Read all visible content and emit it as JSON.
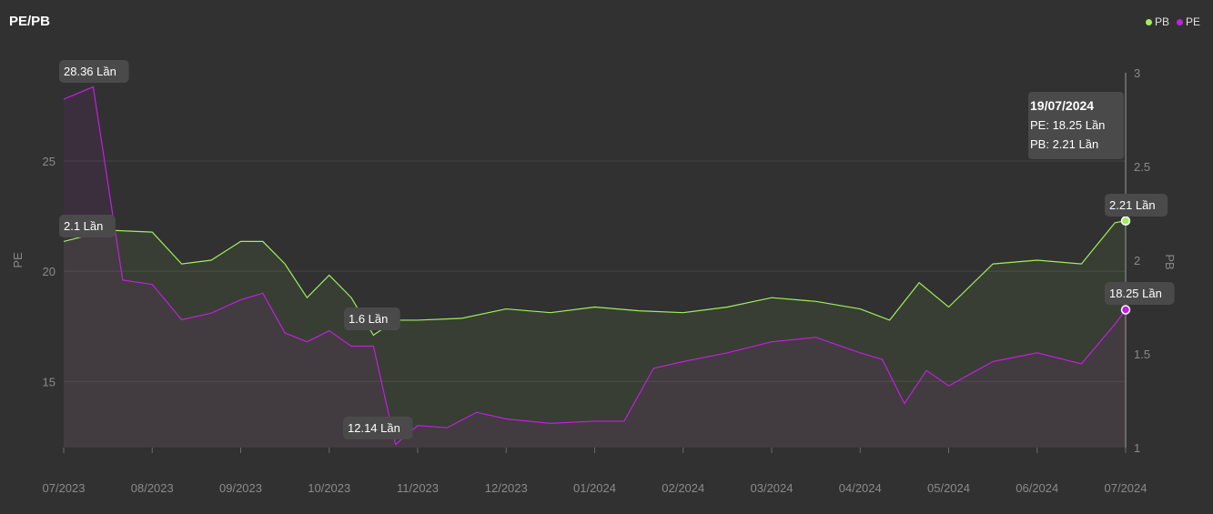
{
  "title": "PE/PB",
  "legend": [
    {
      "name": "PB",
      "color": "#9ef05a"
    },
    {
      "name": "PE",
      "color": "#c21fe0"
    }
  ],
  "chart_data": {
    "type": "line",
    "title": "PE/PB",
    "x_ticks": [
      "07/2023",
      "08/2023",
      "09/2023",
      "10/2023",
      "11/2023",
      "12/2023",
      "01/2024",
      "02/2024",
      "03/2024",
      "04/2024",
      "05/2024",
      "06/2024",
      "07/2024"
    ],
    "y_left": {
      "label": "PE",
      "ticks": [
        "15",
        "20",
        "25"
      ],
      "range": [
        12,
        29
      ]
    },
    "y_right": {
      "label": "PB",
      "ticks": [
        "1",
        "1.5",
        "2",
        "2.5",
        "3"
      ],
      "range": [
        1,
        3
      ]
    },
    "grid": true,
    "legend_position": "top-right",
    "series": [
      {
        "name": "PE",
        "axis": "left",
        "color": "#c21fe0",
        "points": [
          [
            "07/2023",
            27.8
          ],
          [
            "07/2023",
            28.36
          ],
          [
            "07/2023",
            19.6
          ],
          [
            "08/2023",
            19.4
          ],
          [
            "08/2023",
            17.8
          ],
          [
            "08/2023",
            18.1
          ],
          [
            "09/2023",
            18.7
          ],
          [
            "09/2023",
            19.0
          ],
          [
            "09/2023",
            17.2
          ],
          [
            "09/2023",
            16.8
          ],
          [
            "10/2023",
            17.3
          ],
          [
            "10/2023",
            16.6
          ],
          [
            "10/2023",
            16.6
          ],
          [
            "10/2023",
            12.14
          ],
          [
            "11/2023",
            13.0
          ],
          [
            "11/2023",
            12.9
          ],
          [
            "11/2023",
            13.6
          ],
          [
            "12/2023",
            13.3
          ],
          [
            "12/2023",
            13.1
          ],
          [
            "01/2024",
            13.2
          ],
          [
            "01/2024",
            13.2
          ],
          [
            "01/2024",
            15.6
          ],
          [
            "02/2024",
            15.9
          ],
          [
            "02/2024",
            16.3
          ],
          [
            "03/2024",
            16.8
          ],
          [
            "03/2024",
            17.0
          ],
          [
            "04/2024",
            16.3
          ],
          [
            "04/2024",
            16.0
          ],
          [
            "04/2024",
            14.0
          ],
          [
            "04/2024",
            15.5
          ],
          [
            "05/2024",
            14.8
          ],
          [
            "05/2024",
            15.9
          ],
          [
            "06/2024",
            16.3
          ],
          [
            "06/2024",
            15.8
          ],
          [
            "07/2024",
            17.6
          ],
          [
            "07/2024",
            18.25
          ]
        ],
        "labels": [
          {
            "text": "28.36 Lần",
            "x": "07/2023",
            "y": 28.36
          },
          {
            "text": "12.14 Lần",
            "x": "10/2023",
            "y": 12.14
          },
          {
            "text": "18.25 Lần",
            "x": "07/2024",
            "y": 18.25
          }
        ]
      },
      {
        "name": "PB",
        "axis": "right",
        "color": "#9ef05a",
        "points": [
          [
            "07/2023",
            2.1
          ],
          [
            "07/2023",
            2.16
          ],
          [
            "08/2023",
            2.15
          ],
          [
            "08/2023",
            1.98
          ],
          [
            "08/2023",
            2.0
          ],
          [
            "09/2023",
            2.1
          ],
          [
            "09/2023",
            2.1
          ],
          [
            "09/2023",
            1.98
          ],
          [
            "09/2023",
            1.8
          ],
          [
            "10/2023",
            1.92
          ],
          [
            "10/2023",
            1.8
          ],
          [
            "10/2023",
            1.6
          ],
          [
            "10/2023",
            1.68
          ],
          [
            "11/2023",
            1.68
          ],
          [
            "11/2023",
            1.69
          ],
          [
            "12/2023",
            1.74
          ],
          [
            "12/2023",
            1.72
          ],
          [
            "01/2024",
            1.75
          ],
          [
            "01/2024",
            1.73
          ],
          [
            "02/2024",
            1.72
          ],
          [
            "02/2024",
            1.75
          ],
          [
            "03/2024",
            1.8
          ],
          [
            "03/2024",
            1.78
          ],
          [
            "04/2024",
            1.74
          ],
          [
            "04/2024",
            1.68
          ],
          [
            "04/2024",
            1.88
          ],
          [
            "05/2024",
            1.75
          ],
          [
            "05/2024",
            1.98
          ],
          [
            "06/2024",
            2.0
          ],
          [
            "06/2024",
            1.98
          ],
          [
            "07/2024",
            2.2
          ],
          [
            "07/2024",
            2.21
          ]
        ],
        "labels": [
          {
            "text": "2.1 Lần",
            "x": "07/2023",
            "y": 2.1
          },
          {
            "text": "1.6 Lần",
            "x": "10/2023",
            "y": 1.6
          },
          {
            "text": "2.21 Lần",
            "x": "07/2024",
            "y": 2.21
          }
        ]
      }
    ],
    "tooltip": {
      "date": "19/07/2024",
      "pe": "PE: 18.25 Lần",
      "pb": "PB: 2.21 Lần"
    }
  }
}
